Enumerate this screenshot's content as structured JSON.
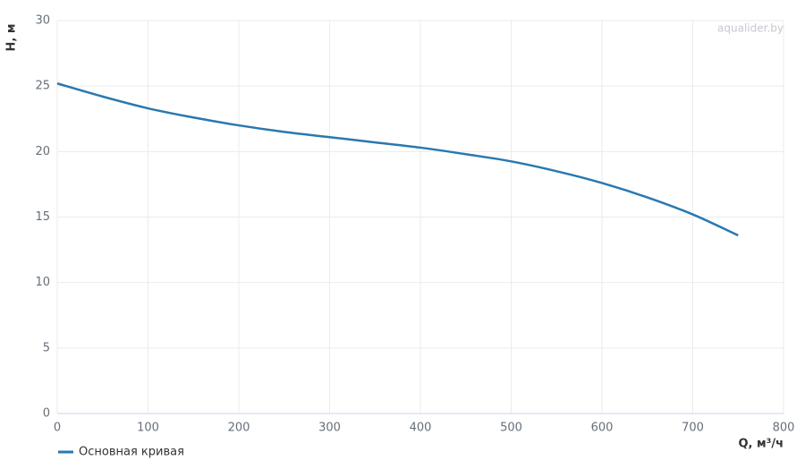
{
  "chart_data": {
    "type": "line",
    "watermark": "aqualider.by",
    "xlabel": "Q, м³/ч",
    "ylabel": "H, м",
    "x": [
      0,
      50,
      100,
      150,
      200,
      250,
      300,
      350,
      400,
      450,
      500,
      550,
      600,
      650,
      700,
      750
    ],
    "series": [
      {
        "name": "Основная кривая",
        "color": "#2a78b0",
        "values": [
          25.2,
          24.2,
          23.3,
          22.6,
          22.0,
          21.5,
          21.1,
          20.7,
          20.3,
          19.8,
          19.25,
          18.5,
          17.6,
          16.5,
          15.2,
          13.6
        ]
      }
    ],
    "xlim": [
      0,
      800
    ],
    "xticks": [
      0,
      100,
      200,
      300,
      400,
      500,
      600,
      700,
      800
    ],
    "ylim": [
      0,
      30
    ],
    "yticks": [
      0,
      5,
      10,
      15,
      20,
      25,
      30
    ],
    "grid": true
  }
}
